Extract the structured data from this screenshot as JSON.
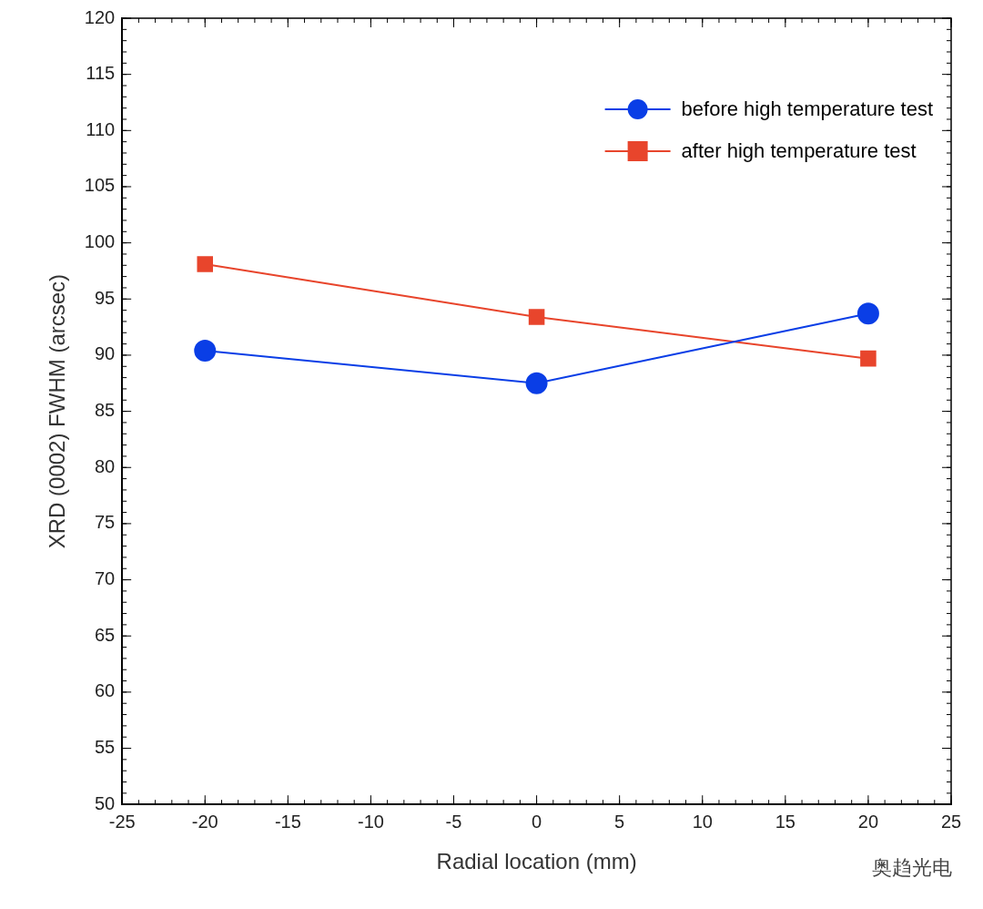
{
  "chart_data": {
    "type": "line",
    "x_label": "Radial location (mm)",
    "y_label": "XRD (0002) FWHM (arcsec)",
    "x": [
      -20,
      0,
      20
    ],
    "series": [
      {
        "name": "before high temperature test",
        "color": "#0a3ee6",
        "marker": "circle",
        "line_style": "solid",
        "values": [
          90.4,
          87.5,
          93.7
        ]
      },
      {
        "name": "after high temperature test",
        "color": "#e8452c",
        "marker": "square",
        "line_style": "solid",
        "values": [
          98.1,
          93.4,
          89.7
        ]
      }
    ],
    "xlim": [
      -25,
      25
    ],
    "xticks": [
      -25,
      -20,
      -15,
      -10,
      -5,
      0,
      5,
      10,
      15,
      20,
      25
    ],
    "ylim": [
      50,
      120
    ],
    "yticks": [
      50,
      55,
      60,
      65,
      70,
      75,
      80,
      85,
      90,
      95,
      100,
      105,
      110,
      115,
      120
    ],
    "grid": false,
    "legend": "upper right",
    "annotations": [
      "奥趋光电"
    ]
  }
}
